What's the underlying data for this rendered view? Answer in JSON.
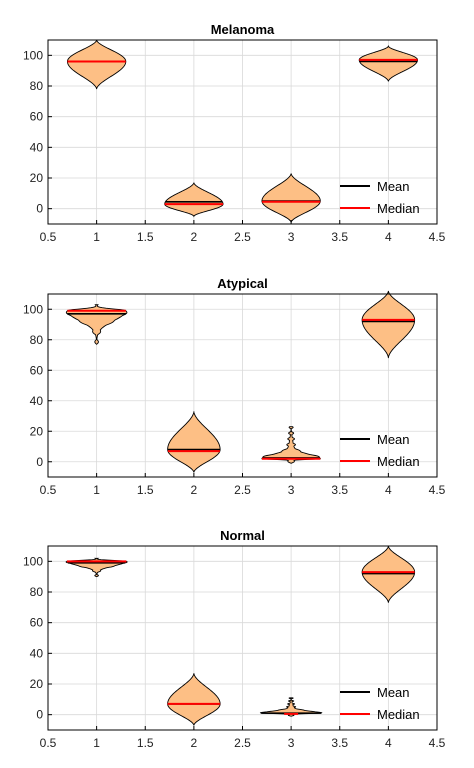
{
  "colors": {
    "violin_fill": "#fdbf85",
    "violin_edge": "#000000",
    "mean": "#000000",
    "median": "#ff0000",
    "grid": "#d9d9d9",
    "axes": "#000000"
  },
  "chart_data": [
    {
      "type": "violin",
      "title": "Melanoma",
      "xlim": [
        0.5,
        4.5
      ],
      "ylim": [
        -10,
        110
      ],
      "xticks": [
        "0.5",
        "1",
        "1.5",
        "2",
        "2.5",
        "3",
        "3.5",
        "4",
        "4.5"
      ],
      "yticks": [
        "0",
        "20",
        "40",
        "60",
        "80",
        "100"
      ],
      "grid": true,
      "legend": {
        "placement": "bottom-right",
        "entries": [
          "Mean",
          "Median"
        ]
      },
      "violins": [
        {
          "x": 1,
          "min": 78,
          "max": 110,
          "peak": 96,
          "halfwidth": 0.3,
          "mean": 96,
          "median": 96
        },
        {
          "x": 2,
          "min": -5,
          "max": 17,
          "peak": 3,
          "halfwidth": 0.3,
          "mean": 4.5,
          "median": 3
        },
        {
          "x": 3,
          "min": -9,
          "max": 23,
          "peak": 5,
          "halfwidth": 0.3,
          "mean": 5,
          "median": 4.5
        },
        {
          "x": 4,
          "min": 83,
          "max": 106,
          "peak": 97,
          "halfwidth": 0.3,
          "mean": 96,
          "median": 97
        }
      ]
    },
    {
      "type": "violin",
      "title": "Atypical",
      "xlim": [
        0.5,
        4.5
      ],
      "ylim": [
        -10,
        110
      ],
      "xticks": [
        "0.5",
        "1",
        "1.5",
        "2",
        "2.5",
        "3",
        "3.5",
        "4",
        "4.5"
      ],
      "yticks": [
        "0",
        "20",
        "40",
        "60",
        "80",
        "100"
      ],
      "grid": true,
      "legend": {
        "placement": "bottom-right",
        "entries": [
          "Mean",
          "Median"
        ]
      },
      "violins": [
        {
          "x": 1,
          "min": 77,
          "max": 103,
          "peak": 99,
          "halfwidth": 0.3,
          "mean": 97,
          "median": 99,
          "shape": "skewed-tail"
        },
        {
          "x": 2,
          "min": -7,
          "max": 33,
          "peak": 8,
          "halfwidth": 0.27,
          "mean": 8,
          "median": 7
        },
        {
          "x": 3,
          "min": -1,
          "max": 23,
          "peak": 2,
          "halfwidth": 0.3,
          "mean": 2.5,
          "median": 2,
          "shape": "spiky"
        },
        {
          "x": 4,
          "min": 68,
          "max": 112,
          "peak": 93,
          "halfwidth": 0.27,
          "mean": 92,
          "median": 93
        }
      ]
    },
    {
      "type": "violin",
      "title": "Normal",
      "xlim": [
        0.5,
        4.5
      ],
      "ylim": [
        -10,
        110
      ],
      "xticks": [
        "0.5",
        "1",
        "1.5",
        "2",
        "2.5",
        "3",
        "3.5",
        "4",
        "4.5"
      ],
      "yticks": [
        "0",
        "20",
        "40",
        "60",
        "80",
        "100"
      ],
      "grid": true,
      "legend": {
        "placement": "bottom-right",
        "entries": [
          "Mean",
          "Median"
        ]
      },
      "violins": [
        {
          "x": 1,
          "min": 90,
          "max": 102,
          "peak": 100,
          "halfwidth": 0.3,
          "mean": 99,
          "median": 100,
          "shape": "skewed-tail"
        },
        {
          "x": 2,
          "min": -7,
          "max": 27,
          "peak": 7,
          "halfwidth": 0.27,
          "mean": 7,
          "median": 7
        },
        {
          "x": 3,
          "min": -1,
          "max": 11,
          "peak": 1,
          "halfwidth": 0.3,
          "mean": 1,
          "median": 0.5,
          "shape": "spiky"
        },
        {
          "x": 4,
          "min": 73,
          "max": 110,
          "peak": 93,
          "halfwidth": 0.27,
          "mean": 92,
          "median": 93
        }
      ]
    }
  ]
}
